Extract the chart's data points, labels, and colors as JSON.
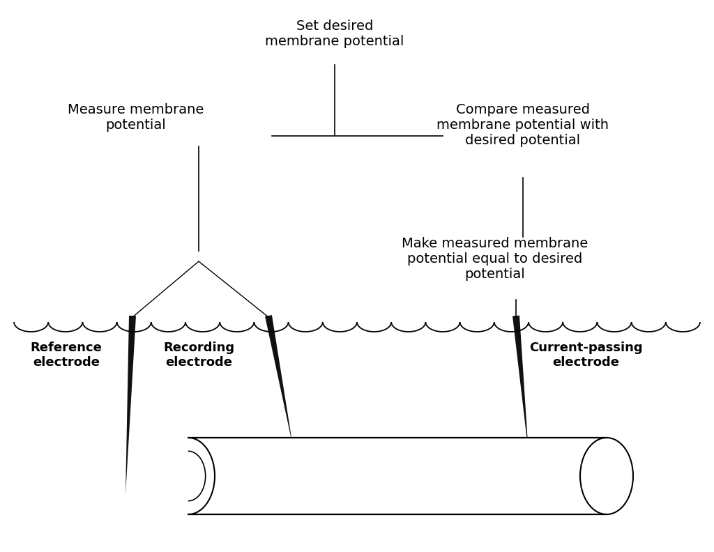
{
  "background_color": "#ffffff",
  "text_color": "#000000",
  "line_color": "#000000",
  "electrode_color": "#111111",
  "texts": {
    "set_desired": "Set desired\nmembrane potential",
    "measure": "Measure membrane\npotential",
    "compare": "Compare measured\nmembrane potential with\ndesired potential",
    "make_equal": "Make measured membrane\npotential equal to desired\npotential",
    "reference": "Reference\nelectrode",
    "recording": "Recording\nelectrode",
    "current_passing": "Current-passing\nelectrode"
  },
  "font_size_main": 14,
  "font_size_label": 13
}
